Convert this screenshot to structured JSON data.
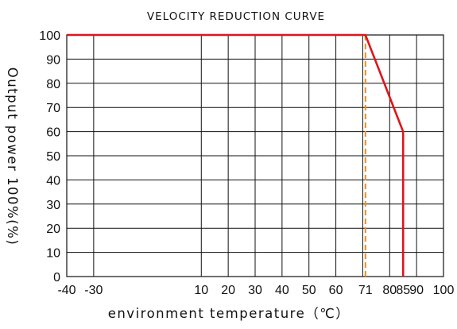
{
  "chart_data": {
    "type": "line",
    "title": "VELOCITY REDUCTION CURVE",
    "xlabel": "environment temperature（℃）",
    "ylabel": "Output power 100%(%)",
    "xlim": [
      -40,
      100
    ],
    "ylim": [
      0,
      100
    ],
    "xticks": [
      -40,
      -30,
      10,
      20,
      30,
      40,
      50,
      60,
      71,
      80,
      85,
      90,
      100
    ],
    "xtick_labels": [
      "-40",
      "-30",
      "10",
      "20",
      "30",
      "40",
      "50",
      "60",
      "71",
      "80",
      "85",
      "90",
      "100"
    ],
    "highlight_ticks": [
      "71",
      "85"
    ],
    "yticks": [
      0,
      10,
      20,
      30,
      40,
      50,
      60,
      70,
      80,
      90,
      100
    ],
    "ytick_labels": [
      "0",
      "10",
      "20",
      "30",
      "40",
      "50",
      "60",
      "70",
      "80",
      "90",
      "100"
    ],
    "vertical_gridlines_x": [
      -30,
      10,
      20,
      30,
      40,
      50,
      60,
      70,
      80,
      90
    ],
    "grid": true,
    "series": [
      {
        "color": "#e0141c",
        "points": [
          [
            -40,
            100
          ],
          [
            71,
            100
          ],
          [
            85,
            60
          ],
          [
            85,
            0
          ]
        ]
      }
    ],
    "reference_lines": [
      {
        "x": 71,
        "color": "#f08c1e",
        "style": "dashed"
      }
    ],
    "colors": {
      "curve": "#e0141c",
      "reference": "#f08c1e",
      "highlight_tick": "#e0141c",
      "text": "#111111"
    }
  }
}
